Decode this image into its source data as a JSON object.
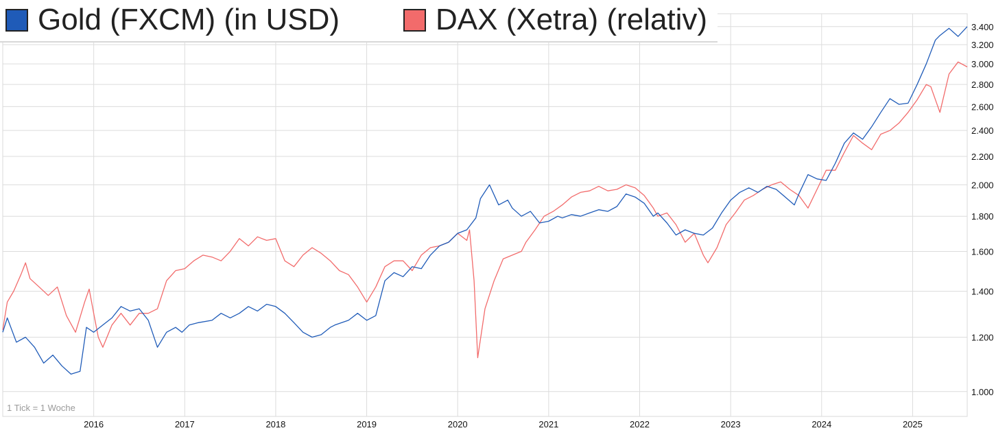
{
  "chart_data": {
    "type": "line",
    "legend_placement": "top-left",
    "legend": [
      {
        "label": "Gold (FXCM) (in USD)",
        "color": "#1f5bb8"
      },
      {
        "label": "DAX (Xetra) (relativ)",
        "color": "#f26b6b"
      }
    ],
    "note": "1 Tick = 1 Woche",
    "scale": "log",
    "ylim": [
      0.92,
      3.55
    ],
    "y_ticks": [
      1.0,
      1.2,
      1.4,
      1.6,
      1.8,
      2.0,
      2.2,
      2.4,
      2.6,
      2.8,
      3.0,
      3.2,
      3.4
    ],
    "y_tick_labels": [
      "1.000",
      "1.200",
      "1.400",
      "1.600",
      "1.800",
      "2.000",
      "2.200",
      "2.400",
      "2.600",
      "2.800",
      "3.000",
      "3.200",
      "3.400"
    ],
    "xlim": [
      2015.0,
      2025.6
    ],
    "x_ticks": [
      2016,
      2017,
      2018,
      2019,
      2020,
      2021,
      2022,
      2023,
      2024,
      2025
    ],
    "x_tick_labels": [
      "2016",
      "2017",
      "2018",
      "2019",
      "2020",
      "2021",
      "2022",
      "2023",
      "2024",
      "2025"
    ],
    "grid": true,
    "series": [
      {
        "name": "Gold (FXCM) (in USD)",
        "color": "#1f5bb8",
        "x": [
          2015.0,
          2015.05,
          2015.15,
          2015.25,
          2015.35,
          2015.45,
          2015.55,
          2015.65,
          2015.75,
          2015.85,
          2015.92,
          2016.0,
          2016.1,
          2016.2,
          2016.3,
          2016.4,
          2016.5,
          2016.6,
          2016.7,
          2016.8,
          2016.9,
          2016.97,
          2017.05,
          2017.15,
          2017.3,
          2017.4,
          2017.5,
          2017.6,
          2017.7,
          2017.8,
          2017.9,
          2018.0,
          2018.1,
          2018.2,
          2018.3,
          2018.4,
          2018.5,
          2018.6,
          2018.65,
          2018.8,
          2018.9,
          2019.0,
          2019.1,
          2019.2,
          2019.3,
          2019.4,
          2019.5,
          2019.6,
          2019.7,
          2019.8,
          2019.9,
          2020.0,
          2020.1,
          2020.2,
          2020.25,
          2020.35,
          2020.45,
          2020.55,
          2020.6,
          2020.7,
          2020.8,
          2020.9,
          2021.0,
          2021.1,
          2021.15,
          2021.25,
          2021.35,
          2021.45,
          2021.55,
          2021.65,
          2021.75,
          2021.85,
          2021.95,
          2022.05,
          2022.15,
          2022.2,
          2022.3,
          2022.4,
          2022.5,
          2022.6,
          2022.7,
          2022.8,
          2022.9,
          2023.0,
          2023.1,
          2023.2,
          2023.3,
          2023.4,
          2023.5,
          2023.6,
          2023.7,
          2023.75,
          2023.85,
          2023.95,
          2024.05,
          2024.15,
          2024.25,
          2024.35,
          2024.45,
          2024.55,
          2024.65,
          2024.75,
          2024.85,
          2024.95,
          2025.05,
          2025.15,
          2025.25,
          2025.3,
          2025.4,
          2025.5,
          2025.6
        ],
        "values": [
          1.22,
          1.28,
          1.18,
          1.2,
          1.16,
          1.1,
          1.13,
          1.09,
          1.06,
          1.07,
          1.24,
          1.22,
          1.25,
          1.28,
          1.33,
          1.31,
          1.32,
          1.27,
          1.16,
          1.22,
          1.24,
          1.22,
          1.25,
          1.26,
          1.27,
          1.3,
          1.28,
          1.3,
          1.33,
          1.31,
          1.34,
          1.33,
          1.3,
          1.26,
          1.22,
          1.2,
          1.21,
          1.24,
          1.25,
          1.27,
          1.3,
          1.27,
          1.29,
          1.45,
          1.49,
          1.47,
          1.52,
          1.51,
          1.58,
          1.63,
          1.65,
          1.7,
          1.72,
          1.79,
          1.91,
          2.0,
          1.87,
          1.9,
          1.85,
          1.8,
          1.83,
          1.76,
          1.77,
          1.8,
          1.79,
          1.81,
          1.8,
          1.82,
          1.84,
          1.83,
          1.86,
          1.94,
          1.92,
          1.88,
          1.8,
          1.82,
          1.76,
          1.69,
          1.72,
          1.7,
          1.69,
          1.73,
          1.82,
          1.9,
          1.95,
          1.98,
          1.95,
          1.99,
          1.97,
          1.92,
          1.87,
          1.94,
          2.07,
          2.04,
          2.03,
          2.15,
          2.3,
          2.38,
          2.33,
          2.43,
          2.55,
          2.67,
          2.62,
          2.63,
          2.8,
          3.0,
          3.25,
          3.3,
          3.38,
          3.29,
          3.4
        ]
      },
      {
        "name": "DAX (Xetra) (relativ)",
        "color": "#f26b6b",
        "x": [
          2015.0,
          2015.05,
          2015.12,
          2015.2,
          2015.25,
          2015.3,
          2015.4,
          2015.5,
          2015.6,
          2015.7,
          2015.8,
          2015.9,
          2015.95,
          2016.0,
          2016.05,
          2016.1,
          2016.2,
          2016.3,
          2016.4,
          2016.5,
          2016.6,
          2016.7,
          2016.8,
          2016.9,
          2017.0,
          2017.1,
          2017.2,
          2017.3,
          2017.4,
          2017.5,
          2017.6,
          2017.7,
          2017.8,
          2017.9,
          2018.0,
          2018.1,
          2018.2,
          2018.3,
          2018.4,
          2018.5,
          2018.6,
          2018.7,
          2018.8,
          2018.9,
          2019.0,
          2019.1,
          2019.2,
          2019.3,
          2019.4,
          2019.5,
          2019.6,
          2019.7,
          2019.8,
          2019.9,
          2020.0,
          2020.1,
          2020.13,
          2020.18,
          2020.22,
          2020.3,
          2020.4,
          2020.5,
          2020.6,
          2020.7,
          2020.75,
          2020.85,
          2020.95,
          2021.05,
          2021.15,
          2021.25,
          2021.35,
          2021.45,
          2021.55,
          2021.65,
          2021.75,
          2021.85,
          2021.95,
          2022.05,
          2022.15,
          2022.2,
          2022.3,
          2022.4,
          2022.5,
          2022.6,
          2022.7,
          2022.75,
          2022.85,
          2022.95,
          2023.05,
          2023.15,
          2023.25,
          2023.35,
          2023.45,
          2023.55,
          2023.65,
          2023.75,
          2023.85,
          2023.95,
          2024.05,
          2024.15,
          2024.25,
          2024.35,
          2024.45,
          2024.55,
          2024.65,
          2024.75,
          2024.85,
          2024.95,
          2025.05,
          2025.15,
          2025.2,
          2025.3,
          2025.4,
          2025.5,
          2025.6
        ],
        "values": [
          1.23,
          1.35,
          1.4,
          1.48,
          1.54,
          1.46,
          1.42,
          1.38,
          1.42,
          1.29,
          1.22,
          1.35,
          1.41,
          1.3,
          1.2,
          1.16,
          1.25,
          1.3,
          1.25,
          1.3,
          1.3,
          1.32,
          1.45,
          1.5,
          1.51,
          1.55,
          1.58,
          1.57,
          1.55,
          1.6,
          1.67,
          1.63,
          1.68,
          1.66,
          1.67,
          1.55,
          1.52,
          1.58,
          1.62,
          1.59,
          1.55,
          1.5,
          1.48,
          1.42,
          1.35,
          1.42,
          1.52,
          1.55,
          1.55,
          1.5,
          1.58,
          1.62,
          1.63,
          1.65,
          1.7,
          1.66,
          1.72,
          1.45,
          1.12,
          1.32,
          1.45,
          1.56,
          1.58,
          1.6,
          1.65,
          1.72,
          1.8,
          1.83,
          1.87,
          1.92,
          1.95,
          1.96,
          1.99,
          1.96,
          1.97,
          2.0,
          1.98,
          1.93,
          1.85,
          1.8,
          1.82,
          1.75,
          1.65,
          1.7,
          1.58,
          1.54,
          1.62,
          1.75,
          1.82,
          1.9,
          1.93,
          1.97,
          2.0,
          2.02,
          1.97,
          1.93,
          1.85,
          1.97,
          2.1,
          2.1,
          2.23,
          2.36,
          2.3,
          2.25,
          2.37,
          2.4,
          2.46,
          2.55,
          2.66,
          2.8,
          2.78,
          2.55,
          2.9,
          3.02,
          2.97
        ]
      }
    ]
  }
}
